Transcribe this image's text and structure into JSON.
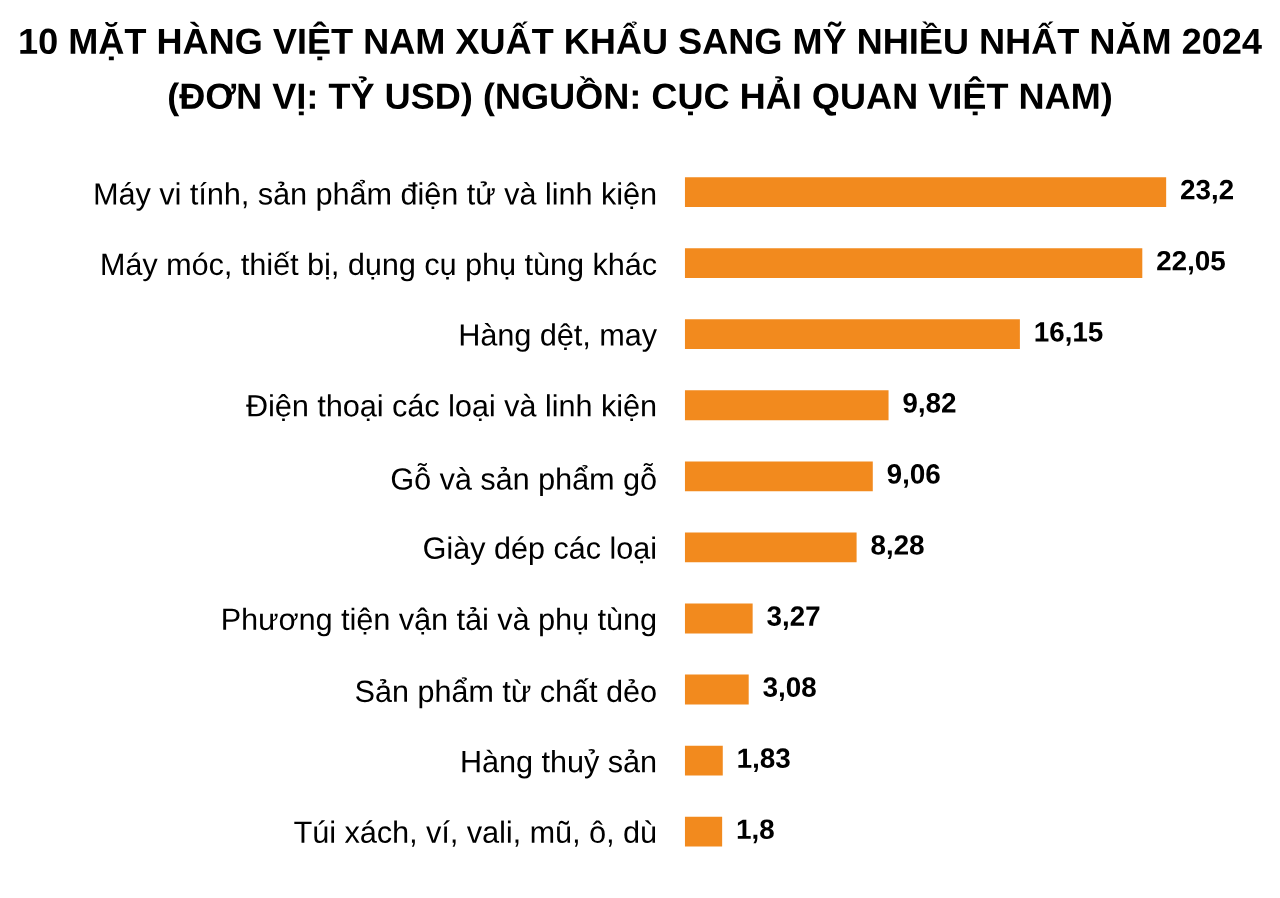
{
  "chart_data": {
    "type": "bar",
    "orientation": "horizontal",
    "title": "10 MẶT HÀNG VIỆT NAM XUẤT KHẨU SANG MỸ NHIỀU NHẤT NĂM 2024",
    "subtitle": "(ĐƠN VỊ: TỶ USD) (NGUỒN: CỤC HẢI QUAN VIỆT NAM)",
    "categories": [
      "Máy vi tính, sản phẩm điện tử và linh kiện",
      "Máy móc, thiết bị, dụng cụ phụ tùng khác",
      "Hàng dệt, may",
      "Điện thoại các loại và linh kiện",
      "Gỗ và sản phẩm gỗ",
      "Giày dép các loại",
      "Phương tiện vận tải và phụ tùng",
      "Sản phẩm từ chất dẻo",
      "Hàng thuỷ sản",
      "Túi xách, ví, vali, mũ, ô, dù"
    ],
    "values": [
      23.2,
      22.05,
      16.15,
      9.82,
      9.06,
      8.28,
      3.27,
      3.08,
      1.83,
      1.8
    ],
    "value_labels": [
      "23,2",
      "22,05",
      "16,15",
      "9,82",
      "9,06",
      "8,28",
      "3,27",
      "3,08",
      "1,83",
      "1,8"
    ],
    "color": "#f28a1e",
    "grid": false,
    "legend": false
  }
}
